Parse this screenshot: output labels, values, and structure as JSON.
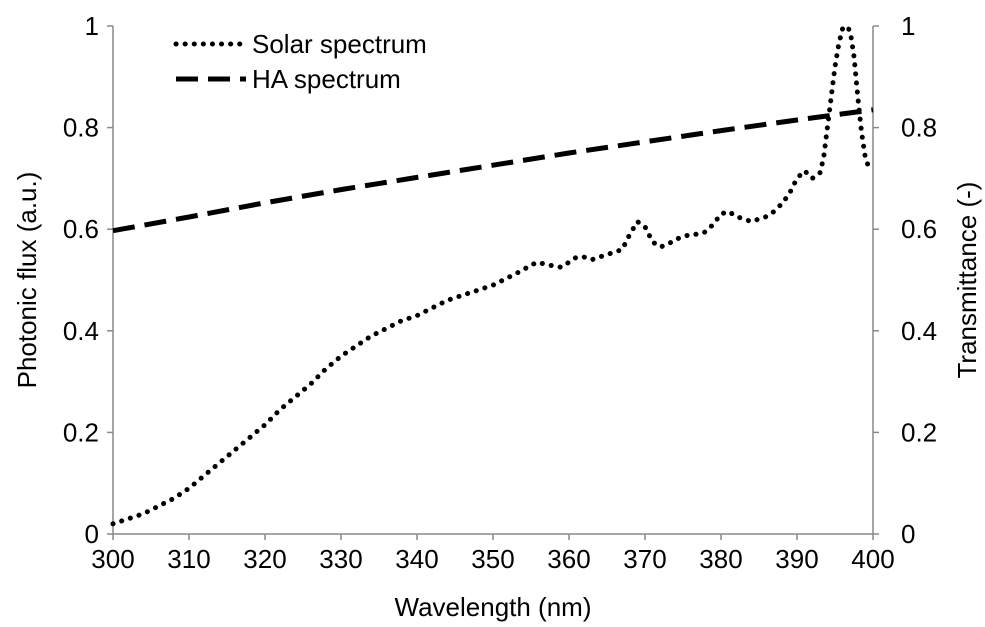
{
  "chart_data": {
    "type": "line",
    "title": "",
    "xlabel": "Wavelength (nm)",
    "ylabel": "Photonic flux (a.u.)",
    "y2label": "Transmittance (-)",
    "xlim": [
      300,
      400
    ],
    "ylim": [
      0,
      1
    ],
    "y2lim": [
      0,
      1
    ],
    "xticks": [
      "300",
      "310",
      "320",
      "330",
      "340",
      "350",
      "360",
      "370",
      "380",
      "390",
      "400"
    ],
    "yticks": [
      "0",
      "0.2",
      "0.4",
      "0.6",
      "0.8",
      "1"
    ],
    "y2ticks": [
      "0",
      "0.2",
      "0.4",
      "0.6",
      "0.8",
      "1"
    ],
    "grid": false,
    "legend_position": "top-left",
    "series": [
      {
        "name": "Solar spectrum",
        "axis": "left",
        "style": "dotted",
        "color": "#000000",
        "x": [
          300,
          302,
          304,
          306,
          308,
          310,
          312,
          314,
          316,
          318,
          320,
          322,
          324,
          326,
          328,
          330,
          332,
          334,
          336,
          338,
          340,
          342,
          344,
          346,
          348,
          350,
          352,
          354,
          355,
          356,
          357,
          358,
          359,
          360,
          361,
          362,
          363,
          364,
          365,
          366,
          367,
          368,
          369,
          370,
          371,
          372,
          373,
          374,
          375,
          376,
          377,
          378,
          379,
          380,
          381,
          382,
          383,
          384,
          385,
          386,
          387,
          388,
          389,
          390,
          391,
          392,
          393,
          393.5,
          394,
          394.5,
          395,
          395.5,
          396,
          396.5,
          397,
          397.5,
          398,
          398.5,
          399,
          399.5
        ],
        "y": [
          0.02,
          0.03,
          0.04,
          0.055,
          0.07,
          0.09,
          0.115,
          0.14,
          0.165,
          0.19,
          0.215,
          0.245,
          0.27,
          0.295,
          0.325,
          0.35,
          0.37,
          0.39,
          0.405,
          0.42,
          0.43,
          0.445,
          0.46,
          0.47,
          0.48,
          0.49,
          0.505,
          0.52,
          0.53,
          0.535,
          0.53,
          0.528,
          0.525,
          0.535,
          0.545,
          0.545,
          0.54,
          0.545,
          0.55,
          0.555,
          0.56,
          0.59,
          0.615,
          0.605,
          0.575,
          0.565,
          0.57,
          0.58,
          0.585,
          0.59,
          0.59,
          0.595,
          0.61,
          0.63,
          0.635,
          0.625,
          0.62,
          0.615,
          0.62,
          0.625,
          0.635,
          0.65,
          0.67,
          0.7,
          0.715,
          0.7,
          0.71,
          0.74,
          0.8,
          0.86,
          0.92,
          0.965,
          0.995,
          1.0,
          0.99,
          0.94,
          0.86,
          0.79,
          0.74,
          0.72
        ]
      },
      {
        "name": "HA spectrum",
        "axis": "right",
        "style": "dashed",
        "color": "#000000",
        "x": [
          300,
          310,
          320,
          330,
          340,
          350,
          360,
          370,
          380,
          390,
          400
        ],
        "y": [
          0.597,
          0.624,
          0.652,
          0.678,
          0.702,
          0.726,
          0.75,
          0.772,
          0.794,
          0.815,
          0.835
        ]
      }
    ]
  }
}
